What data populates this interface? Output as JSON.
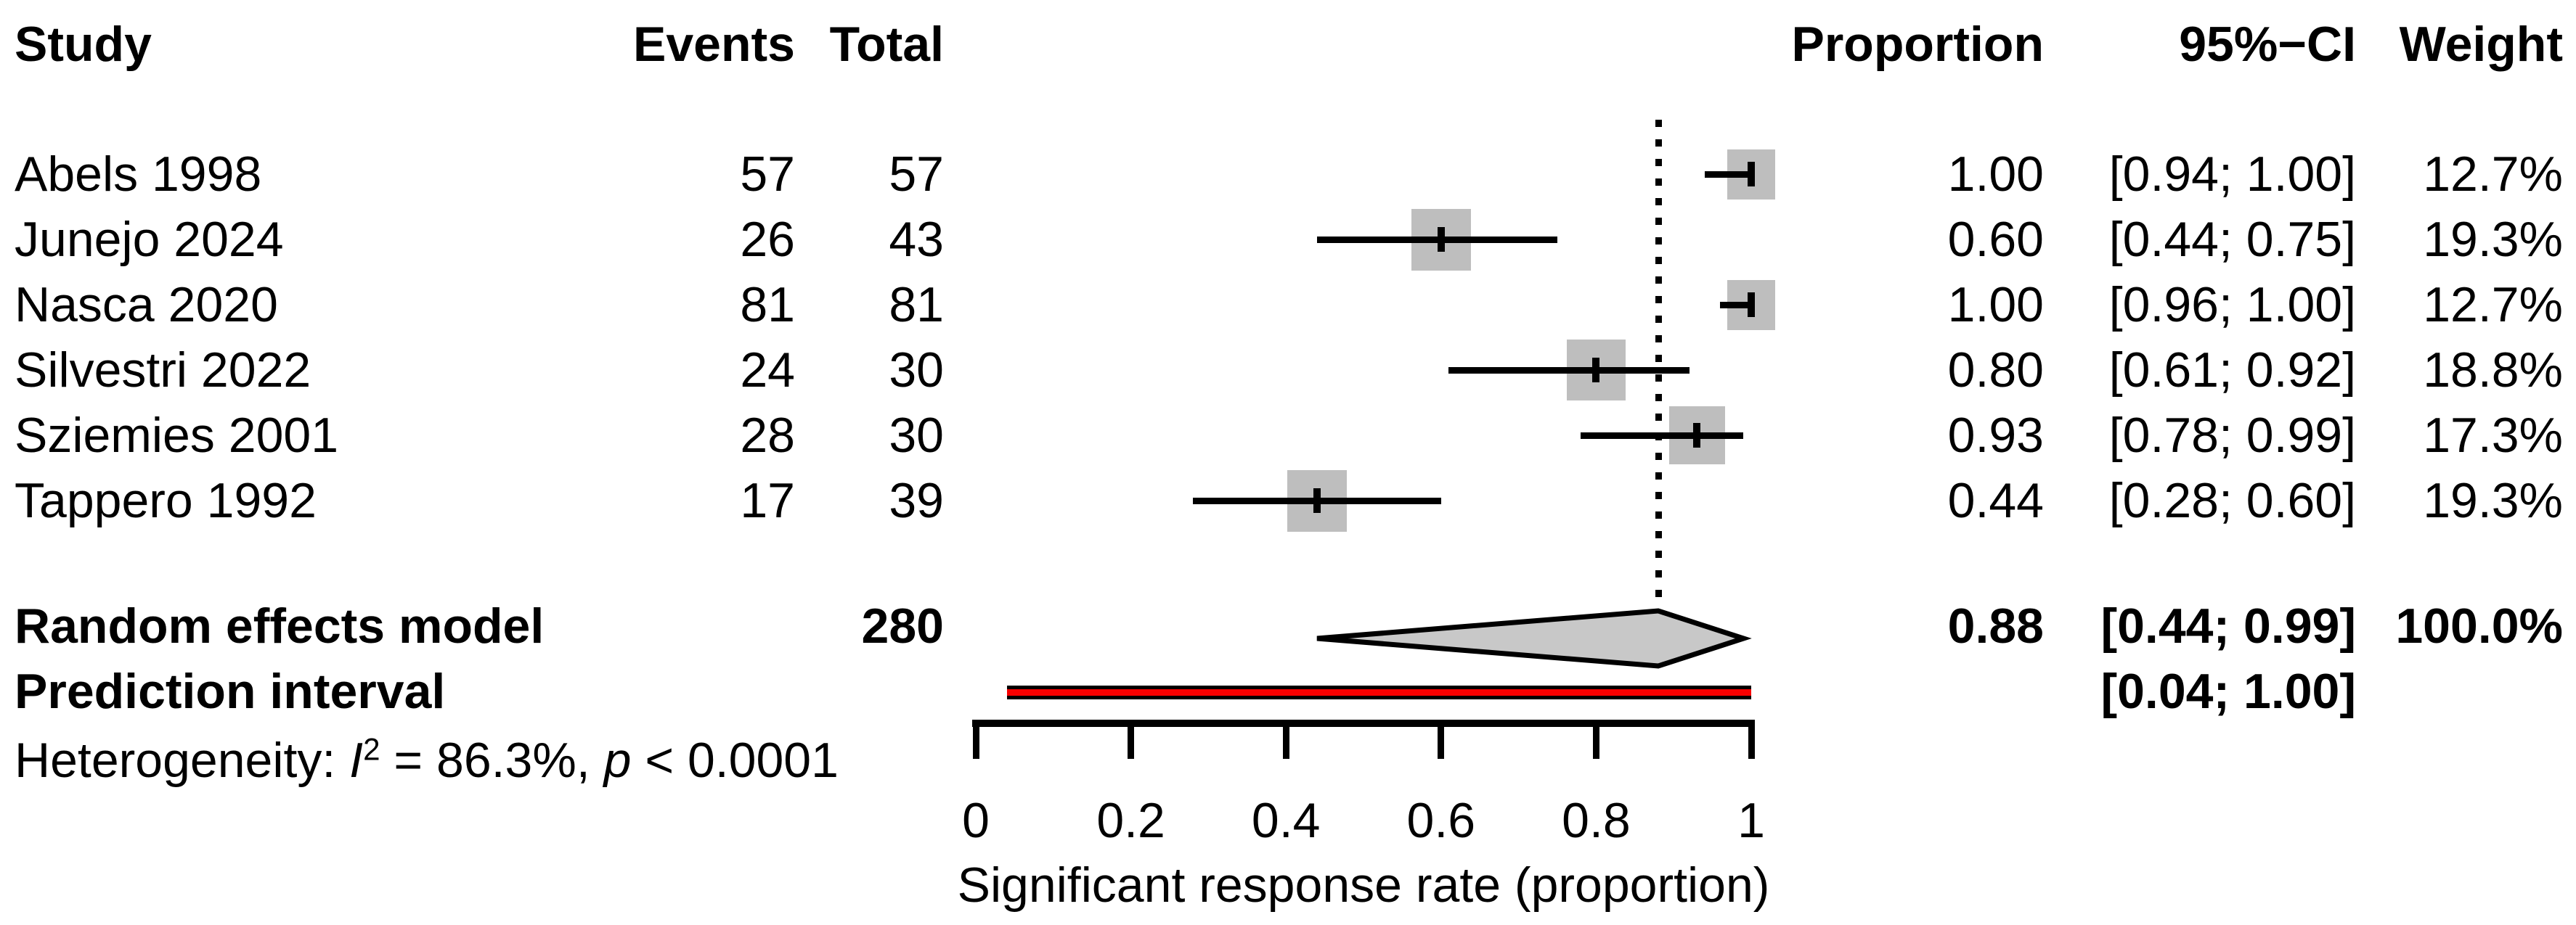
{
  "columns": {
    "study": "Study",
    "events": "Events",
    "total": "Total",
    "proportion": "Proportion",
    "ci": "95%−CI",
    "weight": "Weight"
  },
  "colors": {
    "square_fill": "#bebebe",
    "diamond_fill": "#c8c8c8",
    "prediction_fill": "#f80000",
    "line": "#000000",
    "background": "#ffffff"
  },
  "chart_data": {
    "type": "scatter",
    "subtype": "forest-plot",
    "xlabel": "Significant response rate (proportion)",
    "xlim": [
      0,
      1
    ],
    "grid": false,
    "reference_line_x": 0.88,
    "x_ticks": [
      {
        "value": 0,
        "label": "0"
      },
      {
        "value": 0.2,
        "label": "0.2"
      },
      {
        "value": 0.4,
        "label": "0.4"
      },
      {
        "value": 0.6,
        "label": "0.6"
      },
      {
        "value": 0.8,
        "label": "0.8"
      },
      {
        "value": 1,
        "label": "1"
      }
    ],
    "studies": [
      {
        "name": "Abels 1998",
        "events": "57",
        "total": "57",
        "proportion": "1.00",
        "ci_text": "[0.94; 1.00]",
        "weight_text": "12.7%",
        "estimate": 1.0,
        "ci": [
          0.94,
          1.0
        ],
        "weight_pct": 12.7
      },
      {
        "name": "Junejo 2024",
        "events": "26",
        "total": "43",
        "proportion": "0.60",
        "ci_text": "[0.44; 0.75]",
        "weight_text": "19.3%",
        "estimate": 0.6,
        "ci": [
          0.44,
          0.75
        ],
        "weight_pct": 19.3
      },
      {
        "name": "Nasca 2020",
        "events": "81",
        "total": "81",
        "proportion": "1.00",
        "ci_text": "[0.96; 1.00]",
        "weight_text": "12.7%",
        "estimate": 1.0,
        "ci": [
          0.96,
          1.0
        ],
        "weight_pct": 12.7
      },
      {
        "name": "Silvestri 2022",
        "events": "24",
        "total": "30",
        "proportion": "0.80",
        "ci_text": "[0.61; 0.92]",
        "weight_text": "18.8%",
        "estimate": 0.8,
        "ci": [
          0.61,
          0.92
        ],
        "weight_pct": 18.8
      },
      {
        "name": "Sziemies 2001",
        "events": "28",
        "total": "30",
        "proportion": "0.93",
        "ci_text": "[0.78; 0.99]",
        "weight_text": "17.3%",
        "estimate": 0.93,
        "ci": [
          0.78,
          0.99
        ],
        "weight_pct": 17.3
      },
      {
        "name": "Tappero 1992",
        "events": "17",
        "total": "39",
        "proportion": "0.44",
        "ci_text": "[0.28; 0.60]",
        "weight_text": "19.3%",
        "estimate": 0.44,
        "ci": [
          0.28,
          0.6
        ],
        "weight_pct": 19.3
      }
    ],
    "pooled": {
      "label": "Random effects model",
      "total": "280",
      "proportion": "0.88",
      "ci_text": "[0.44; 0.99]",
      "weight_text": "100.0%",
      "estimate": 0.88,
      "ci": [
        0.44,
        0.99
      ]
    },
    "prediction": {
      "label": "Prediction interval",
      "ci_text": "[0.04; 1.00]",
      "ci": [
        0.04,
        1.0
      ]
    },
    "heterogeneity": {
      "prefix": "Heterogeneity: ",
      "stat_symbol": "I",
      "stat_sup": "2",
      "mid": " = 86.3%, ",
      "p_symbol": "p",
      "tail": " < 0.0001"
    }
  }
}
